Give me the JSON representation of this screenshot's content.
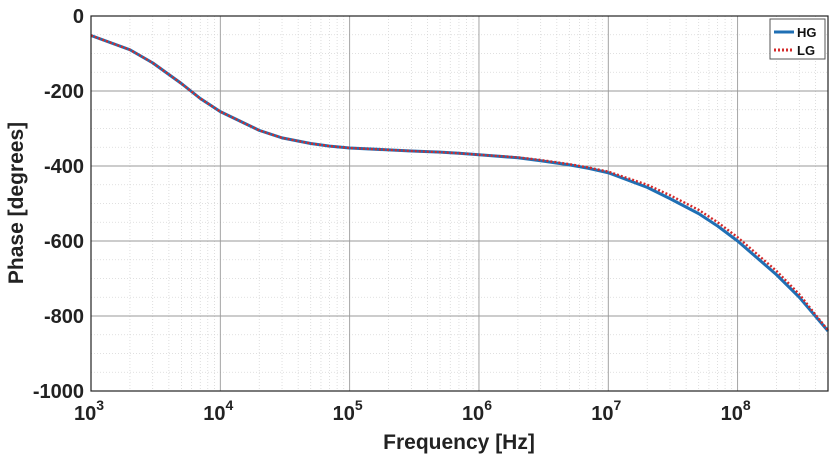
{
  "chart_data": {
    "type": "line",
    "xlabel": "Frequency [Hz]",
    "ylabel": "Phase [degrees]",
    "xscale": "log",
    "xlim": [
      1000,
      500000000
    ],
    "ylim": [
      -1000,
      0
    ],
    "xticks": [
      1000,
      10000,
      100000,
      1000000,
      10000000,
      100000000
    ],
    "xtick_labels": [
      {
        "base": "10",
        "exp": "3"
      },
      {
        "base": "10",
        "exp": "4"
      },
      {
        "base": "10",
        "exp": "5"
      },
      {
        "base": "10",
        "exp": "6"
      },
      {
        "base": "10",
        "exp": "7"
      },
      {
        "base": "10",
        "exp": "8"
      }
    ],
    "yticks": [
      0,
      -200,
      -400,
      -600,
      -800,
      -1000
    ],
    "ytick_labels": [
      "0",
      "-200",
      "-400",
      "-600",
      "-800",
      "-1000"
    ],
    "grid": true,
    "minor_grid": true,
    "legend_position": "top-right",
    "series": [
      {
        "name": "HG",
        "color": "#1f6fb4",
        "style": "solid",
        "x": [
          1000,
          2000,
          3000,
          5000,
          7000,
          10000,
          20000,
          30000,
          50000,
          70000,
          100000,
          200000,
          300000,
          500000,
          700000,
          1000000,
          2000000,
          3000000,
          5000000,
          7000000,
          10000000,
          20000000,
          30000000,
          50000000,
          70000000,
          100000000,
          200000000,
          300000000,
          500000000
        ],
        "values": [
          -52,
          -90,
          -125,
          -180,
          -220,
          -255,
          -305,
          -325,
          -340,
          -347,
          -352,
          -357,
          -360,
          -363,
          -366,
          -370,
          -378,
          -386,
          -397,
          -406,
          -418,
          -457,
          -487,
          -527,
          -560,
          -600,
          -690,
          -750,
          -840
        ]
      },
      {
        "name": "LG",
        "color": "#d42a2a",
        "style": "dotted",
        "x": [
          1000,
          2000,
          3000,
          5000,
          7000,
          10000,
          20000,
          30000,
          50000,
          70000,
          100000,
          200000,
          300000,
          500000,
          700000,
          1000000,
          2000000,
          3000000,
          5000000,
          7000000,
          10000000,
          20000000,
          30000000,
          50000000,
          70000000,
          100000000,
          200000000,
          300000000,
          500000000
        ],
        "values": [
          -52,
          -90,
          -125,
          -180,
          -220,
          -255,
          -305,
          -325,
          -340,
          -347,
          -352,
          -357,
          -360,
          -363,
          -366,
          -370,
          -377,
          -384,
          -395,
          -404,
          -415,
          -450,
          -478,
          -517,
          -550,
          -590,
          -680,
          -742,
          -838
        ]
      }
    ]
  }
}
